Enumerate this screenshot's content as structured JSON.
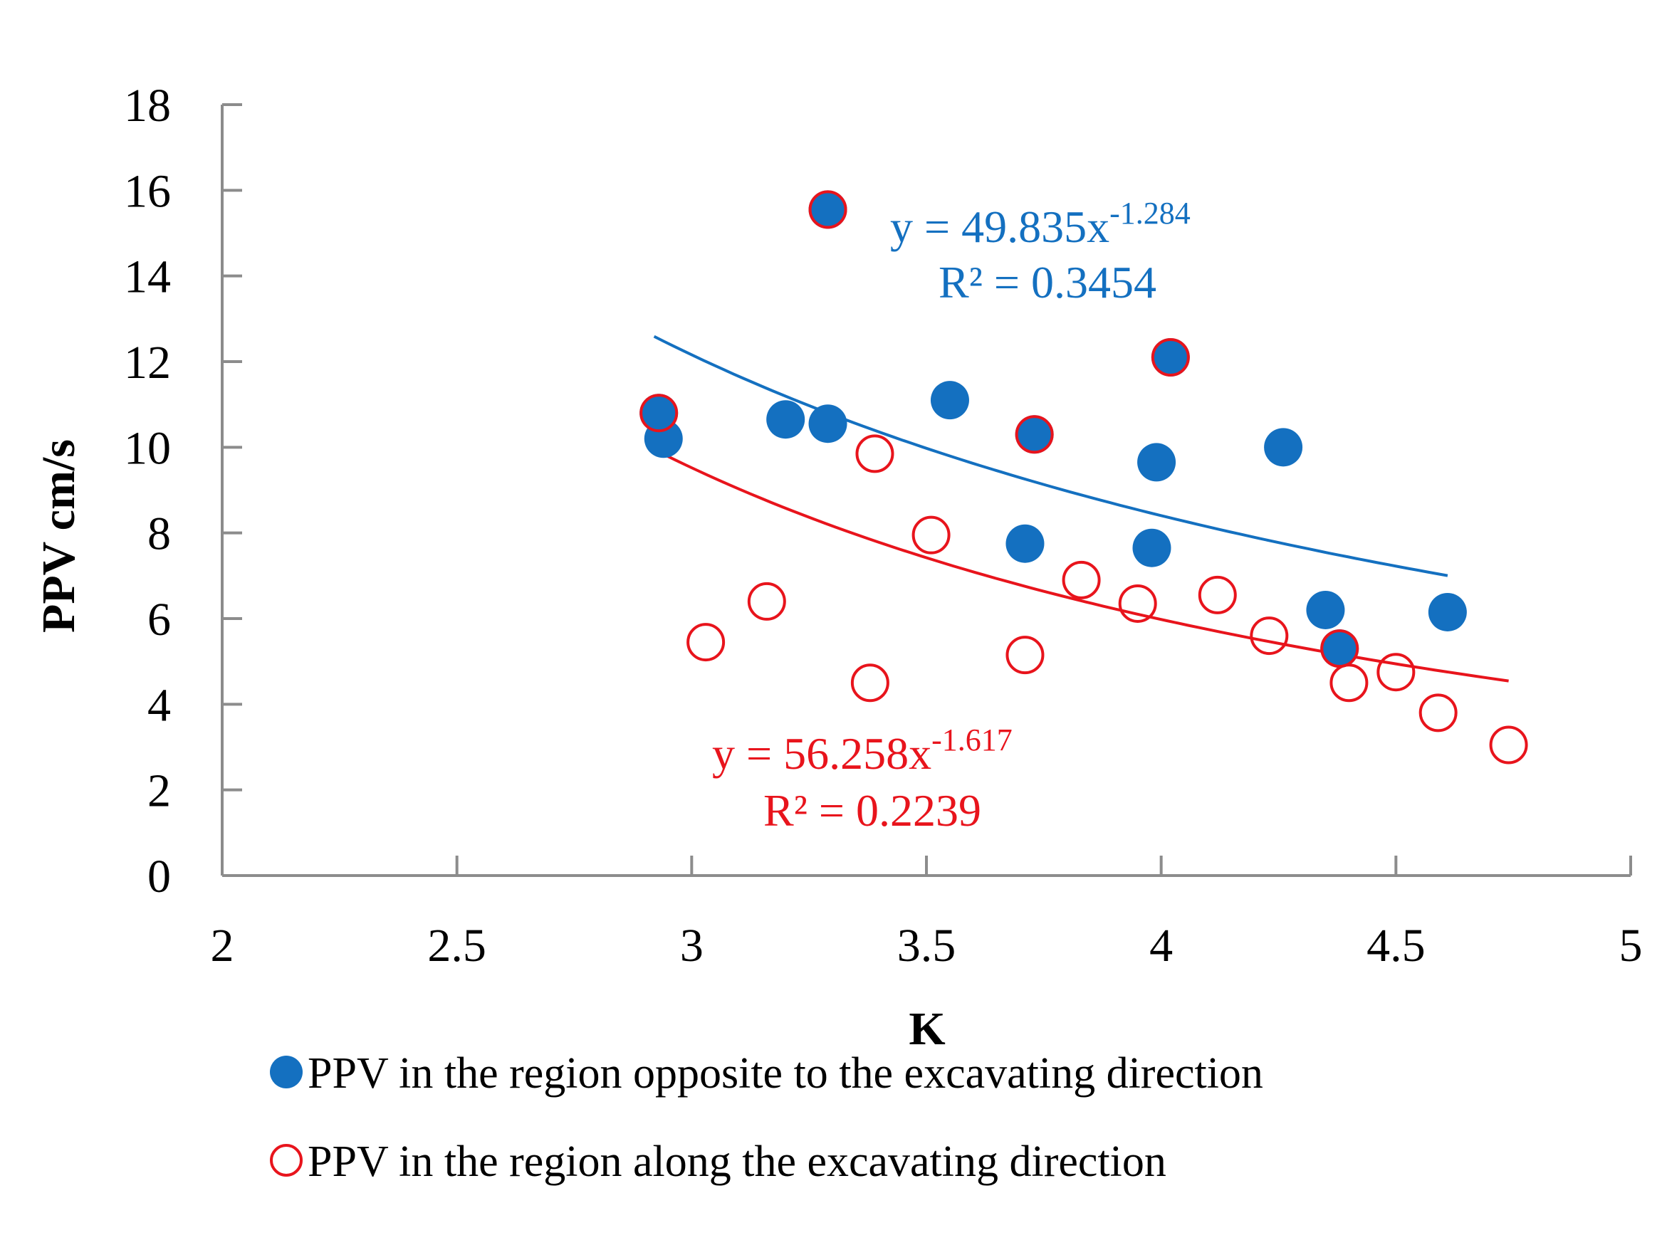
{
  "chart_data": {
    "type": "scatter",
    "xlabel": "K",
    "ylabel": "PPV cm/s",
    "xlim": [
      2,
      5
    ],
    "ylim": [
      0,
      18
    ],
    "x_ticks": [
      2,
      2.5,
      3,
      3.5,
      4,
      4.5,
      5
    ],
    "x_tick_labels": [
      "2",
      "2.5",
      "3",
      "3.5",
      "4",
      "4.5",
      "5"
    ],
    "y_ticks": [
      0,
      2,
      4,
      6,
      8,
      10,
      12,
      14,
      16,
      18
    ],
    "y_tick_labels": [
      "0",
      "2",
      "4",
      "6",
      "8",
      "10",
      "12",
      "14",
      "16",
      "18"
    ],
    "grid": false,
    "legend_position": "bottom",
    "series": [
      {
        "name": "PPV in the region opposite to the excavating direction",
        "marker": "filled-circle",
        "color": "#1470C0",
        "points": [
          {
            "x": 2.94,
            "y": 10.2
          },
          {
            "x": 2.93,
            "y": 10.8
          },
          {
            "x": 3.2,
            "y": 10.65
          },
          {
            "x": 3.29,
            "y": 10.55
          },
          {
            "x": 3.29,
            "y": 15.55
          },
          {
            "x": 3.55,
            "y": 11.1
          },
          {
            "x": 3.71,
            "y": 7.75
          },
          {
            "x": 3.73,
            "y": 10.3
          },
          {
            "x": 3.98,
            "y": 7.65
          },
          {
            "x": 3.99,
            "y": 9.65
          },
          {
            "x": 4.02,
            "y": 12.1
          },
          {
            "x": 4.26,
            "y": 10.0
          },
          {
            "x": 4.35,
            "y": 6.2
          },
          {
            "x": 4.38,
            "y": 5.3
          },
          {
            "x": 4.61,
            "y": 6.15
          }
        ],
        "trendline": {
          "equation": "y = 49.835x",
          "exponent": "-1.284",
          "r_squared": "R² = 0.3454",
          "a": 49.835,
          "b": -1.284,
          "x_range": [
            2.92,
            4.61
          ]
        }
      },
      {
        "name": "PPV in the region along the excavating direction",
        "marker": "hollow-circle",
        "color": "#E8141C",
        "points": [
          {
            "x": 2.93,
            "y": 10.8
          },
          {
            "x": 3.03,
            "y": 5.45
          },
          {
            "x": 3.16,
            "y": 6.4
          },
          {
            "x": 3.29,
            "y": 15.55
          },
          {
            "x": 3.38,
            "y": 4.5
          },
          {
            "x": 3.39,
            "y": 9.85
          },
          {
            "x": 3.51,
            "y": 7.95
          },
          {
            "x": 3.71,
            "y": 5.15
          },
          {
            "x": 3.73,
            "y": 10.3
          },
          {
            "x": 3.83,
            "y": 6.9
          },
          {
            "x": 3.95,
            "y": 6.35
          },
          {
            "x": 4.02,
            "y": 12.1
          },
          {
            "x": 4.12,
            "y": 6.55
          },
          {
            "x": 4.23,
            "y": 5.6
          },
          {
            "x": 4.38,
            "y": 5.3
          },
          {
            "x": 4.4,
            "y": 4.5
          },
          {
            "x": 4.5,
            "y": 4.75
          },
          {
            "x": 4.59,
            "y": 3.8
          },
          {
            "x": 4.74,
            "y": 3.05
          }
        ],
        "trendline": {
          "equation": "y = 56.258x",
          "exponent": "-1.617",
          "r_squared": "R² = 0.2239",
          "a": 56.258,
          "b": -1.617,
          "x_range": [
            2.92,
            4.74
          ]
        }
      }
    ]
  }
}
